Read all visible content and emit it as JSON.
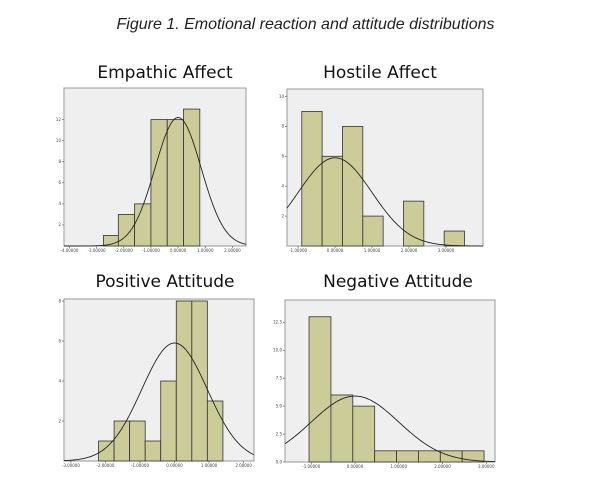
{
  "caption": "Figure 1. Emotional reaction and attitude distributions",
  "colors": {
    "bar": "#cccc99",
    "plot_bg": "#efefef",
    "curve": "#222222"
  },
  "chart_data": [
    {
      "type": "bar",
      "title": "Empathic Affect",
      "xlabel": "",
      "ylabel": "",
      "x_ticks": [
        "-4.00000",
        "-3.00000",
        "-2.00000",
        "-1.00000",
        "0.00000",
        "1.00000",
        "2.00000"
      ],
      "y_ticks": [
        "2",
        "4",
        "6",
        "8",
        "10",
        "12"
      ],
      "bins": [
        [
          -2.75,
          -2.2
        ],
        [
          -2.2,
          -1.6
        ],
        [
          -1.6,
          -1.0
        ],
        [
          -1.0,
          -0.4
        ],
        [
          -0.4,
          0.2
        ],
        [
          0.2,
          0.8
        ]
      ],
      "values": [
        1,
        3,
        4,
        12,
        12,
        13
      ],
      "xlim": [
        -4.2,
        2.5
      ],
      "ylim": [
        0,
        15
      ],
      "curve": {
        "mean": 0.0,
        "sd": 0.85,
        "peak": 12.2
      },
      "grid": false
    },
    {
      "type": "bar",
      "title": "Hostile Affect",
      "xlabel": "",
      "ylabel": "",
      "x_ticks": [
        "-1.00000",
        "0.00000",
        "1.00000",
        "2.00000",
        "3.00000"
      ],
      "y_ticks": [
        "2",
        "4",
        "6",
        "8",
        "10"
      ],
      "bins": [
        [
          -0.9,
          -0.35
        ],
        [
          -0.35,
          0.2
        ],
        [
          0.2,
          0.75
        ],
        [
          0.75,
          1.3
        ],
        [
          1.85,
          2.4
        ],
        [
          2.95,
          3.5
        ]
      ],
      "values": [
        9,
        6,
        8,
        2,
        3,
        1
      ],
      "xlim": [
        -1.3,
        4.0
      ],
      "ylim": [
        0,
        10.5
      ],
      "curve": {
        "mean": 0.0,
        "sd": 1.0,
        "peak": 5.9
      },
      "grid": false
    },
    {
      "type": "bar",
      "title": "Positive Attitude",
      "xlabel": "",
      "ylabel": "",
      "x_ticks": [
        "-3.00000",
        "-2.00000",
        "-1.00000",
        "0.00000",
        "1.00000",
        "2.00000"
      ],
      "y_ticks": [
        "2",
        "4",
        "6",
        "8"
      ],
      "bins": [
        [
          -2.2,
          -1.75
        ],
        [
          -1.75,
          -1.3
        ],
        [
          -1.3,
          -0.85
        ],
        [
          -0.85,
          -0.4
        ],
        [
          -0.4,
          0.05
        ],
        [
          0.05,
          0.5
        ],
        [
          0.5,
          0.95
        ],
        [
          0.95,
          1.4
        ]
      ],
      "values": [
        1,
        2,
        2,
        1,
        4,
        8,
        8,
        3
      ],
      "xlim": [
        -3.2,
        2.3
      ],
      "ylim": [
        0,
        8.1
      ],
      "curve": {
        "mean": 0.0,
        "sd": 0.95,
        "peak": 5.9
      },
      "grid": false
    },
    {
      "type": "bar",
      "title": "Negative Attitude",
      "xlabel": "",
      "ylabel": "",
      "x_ticks": [
        "-1.00000",
        "0.00000",
        "1.00000",
        "2.00000",
        "3.00000"
      ],
      "y_ticks": [
        "0.0",
        "2.5",
        "5.0",
        "7.5",
        "10.0",
        "12.5"
      ],
      "bins": [
        [
          -1.05,
          -0.55
        ],
        [
          -0.55,
          -0.05
        ],
        [
          -0.05,
          0.45
        ],
        [
          0.45,
          0.95
        ],
        [
          0.95,
          1.45
        ],
        [
          1.45,
          1.95
        ],
        [
          1.95,
          2.45
        ],
        [
          2.45,
          2.95
        ]
      ],
      "values": [
        13,
        6,
        5,
        1,
        1,
        1,
        1,
        1
      ],
      "xlim": [
        -1.6,
        3.2
      ],
      "ylim": [
        0,
        14.5
      ],
      "curve": {
        "mean": 0.0,
        "sd": 1.0,
        "peak": 5.9
      },
      "grid": false
    }
  ]
}
